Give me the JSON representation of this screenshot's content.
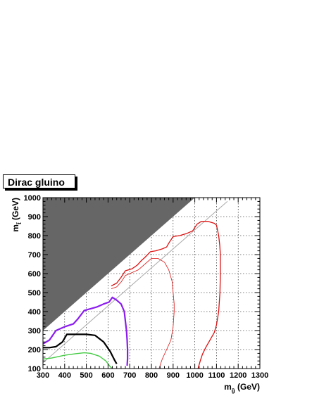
{
  "legend": {
    "label": "Dirac gluino"
  },
  "chart_data": {
    "type": "line",
    "xlabel": "m",
    "xlabel_sub": "g̃",
    "xlabel_unit": " (GeV)",
    "ylabel": "m",
    "ylabel_sub": "t̃",
    "ylabel_unit": " (GeV)",
    "xlim": [
      300,
      1300
    ],
    "ylim": [
      100,
      1000
    ],
    "xticks": [
      300,
      400,
      500,
      600,
      700,
      800,
      900,
      1000,
      1100,
      1200,
      1300
    ],
    "yticks": [
      100,
      200,
      300,
      400,
      500,
      600,
      700,
      800,
      900,
      1000
    ],
    "grid": true,
    "excluded_region": {
      "color": "#666666",
      "points": [
        [
          300,
          300
        ],
        [
          300,
          1000
        ],
        [
          1000,
          1000
        ]
      ]
    },
    "diagonal": {
      "color": "#aaaaaa",
      "points": [
        [
          300,
          130
        ],
        [
          1150,
          980
        ]
      ]
    },
    "series": [
      {
        "color": "#44cc44",
        "width": 1.4,
        "points": [
          [
            300,
            150
          ],
          [
            340,
            155
          ],
          [
            400,
            170
          ],
          [
            450,
            178
          ],
          [
            490,
            183
          ],
          [
            520,
            180
          ],
          [
            560,
            165
          ],
          [
            590,
            140
          ],
          [
            610,
            110
          ],
          [
            620,
            100
          ]
        ]
      },
      {
        "color": "#000000",
        "width": 2.2,
        "points": [
          [
            300,
            210
          ],
          [
            330,
            210
          ],
          [
            360,
            215
          ],
          [
            390,
            240
          ],
          [
            410,
            280
          ],
          [
            450,
            280
          ],
          [
            500,
            280
          ],
          [
            540,
            275
          ],
          [
            580,
            240
          ],
          [
            610,
            190
          ],
          [
            630,
            145
          ],
          [
            640,
            125
          ]
        ]
      },
      {
        "color": "#8b1cf0",
        "width": 2.2,
        "points": [
          [
            300,
            230
          ],
          [
            330,
            250
          ],
          [
            360,
            300
          ],
          [
            400,
            320
          ],
          [
            440,
            335
          ],
          [
            460,
            360
          ],
          [
            490,
            405
          ],
          [
            520,
            415
          ],
          [
            550,
            425
          ],
          [
            580,
            440
          ],
          [
            605,
            450
          ],
          [
            620,
            475
          ],
          [
            640,
            460
          ],
          [
            660,
            440
          ],
          [
            675,
            400
          ],
          [
            680,
            350
          ],
          [
            685,
            300
          ],
          [
            688,
            250
          ],
          [
            690,
            200
          ],
          [
            690,
            150
          ],
          [
            688,
            115
          ]
        ]
      },
      {
        "color": "#dd1111",
        "width": 1.3,
        "points": [
          [
            615,
            535
          ],
          [
            640,
            550
          ],
          [
            660,
            580
          ],
          [
            680,
            615
          ],
          [
            710,
            625
          ],
          [
            735,
            645
          ],
          [
            755,
            670
          ],
          [
            770,
            685
          ],
          [
            795,
            715
          ],
          [
            820,
            720
          ],
          [
            850,
            730
          ],
          [
            870,
            740
          ],
          [
            880,
            760
          ],
          [
            900,
            795
          ],
          [
            930,
            800
          ],
          [
            960,
            810
          ],
          [
            990,
            825
          ],
          [
            1010,
            860
          ],
          [
            1030,
            875
          ],
          [
            1060,
            875
          ],
          [
            1090,
            865
          ],
          [
            1100,
            855
          ],
          [
            1110,
            800
          ],
          [
            1115,
            750
          ],
          [
            1118,
            700
          ],
          [
            1118,
            600
          ],
          [
            1116,
            500
          ],
          [
            1110,
            400
          ],
          [
            1100,
            330
          ],
          [
            1090,
            290
          ],
          [
            1075,
            260
          ],
          [
            1050,
            210
          ],
          [
            1035,
            175
          ],
          [
            1025,
            140
          ],
          [
            1015,
            100
          ]
        ]
      },
      {
        "color": "#dd1111",
        "width": 0.8,
        "points": [
          [
            615,
            520
          ],
          [
            640,
            530
          ],
          [
            660,
            555
          ],
          [
            680,
            590
          ],
          [
            710,
            605
          ],
          [
            740,
            620
          ],
          [
            760,
            640
          ],
          [
            780,
            660
          ],
          [
            800,
            680
          ],
          [
            830,
            680
          ],
          [
            860,
            660
          ],
          [
            880,
            620
          ],
          [
            895,
            560
          ],
          [
            900,
            500
          ],
          [
            905,
            440
          ],
          [
            905,
            400
          ],
          [
            900,
            320
          ],
          [
            890,
            250
          ],
          [
            870,
            200
          ],
          [
            850,
            150
          ],
          [
            835,
            100
          ]
        ]
      }
    ]
  }
}
